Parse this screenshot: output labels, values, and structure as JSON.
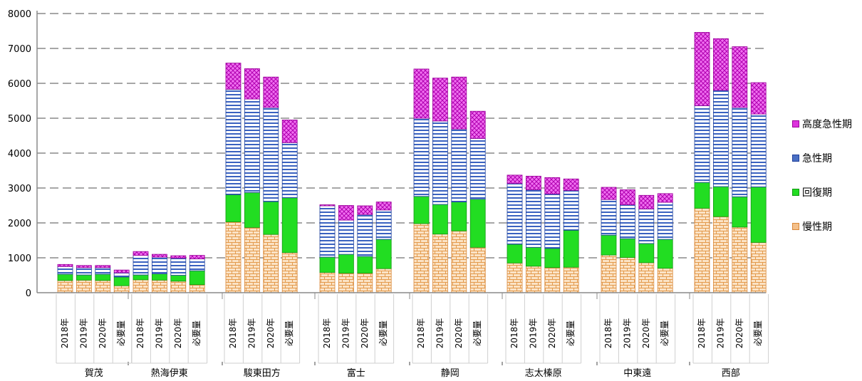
{
  "chart_data": {
    "type": "bar",
    "stacked": true,
    "ylim": [
      0,
      8000
    ],
    "yticks": [
      0,
      1000,
      2000,
      3000,
      4000,
      5000,
      6000,
      7000,
      8000
    ],
    "grid": true,
    "legend_position": "right",
    "groups": [
      {
        "name": "賀茂",
        "categories": [
          "2018年",
          "2019年",
          "2020年",
          "必要量"
        ]
      },
      {
        "name": "熱海伊東",
        "categories": [
          "2018年",
          "2019年",
          "2020年",
          "必要量"
        ]
      },
      {
        "name": "駿東田方",
        "categories": [
          "2018年",
          "2019年",
          "2020年",
          "必要量"
        ]
      },
      {
        "name": "富士",
        "categories": [
          "2018年",
          "2019年",
          "2020年",
          "必要量"
        ]
      },
      {
        "name": "静岡",
        "categories": [
          "2018年",
          "2019年",
          "2020年",
          "必要量"
        ]
      },
      {
        "name": "志太榛原",
        "categories": [
          "2018年",
          "2019年",
          "2020年",
          "必要量"
        ]
      },
      {
        "name": "中東遠",
        "categories": [
          "2018年",
          "2019年",
          "2020年",
          "必要量"
        ]
      },
      {
        "name": "西部",
        "categories": [
          "2018年",
          "2019年",
          "2020年",
          "必要量"
        ]
      }
    ],
    "series": [
      {
        "name": "慢性期",
        "color": "#f4c08a",
        "values": [
          350,
          360,
          350,
          200,
          370,
          360,
          330,
          230,
          2030,
          1870,
          1670,
          1150,
          580,
          560,
          560,
          690,
          1980,
          1680,
          1770,
          1300,
          850,
          760,
          720,
          730,
          1080,
          1010,
          860,
          700,
          2420,
          2180,
          1880,
          1440
        ]
      },
      {
        "name": "回復期",
        "color": "#22dd22",
        "values": [
          180,
          150,
          180,
          250,
          140,
          180,
          170,
          400,
          780,
          1000,
          940,
          1570,
          440,
          540,
          480,
          840,
          780,
          850,
          830,
          1380,
          540,
          540,
          550,
          1060,
          570,
          540,
          550,
          830,
          740,
          860,
          870,
          1590
        ]
      },
      {
        "name": "急性期",
        "color": "#4a6fc4",
        "values": [
          220,
          210,
          190,
          120,
          560,
          480,
          490,
          340,
          3020,
          2680,
          2700,
          1580,
          1470,
          980,
          1200,
          840,
          2240,
          2390,
          2090,
          1740,
          1740,
          1650,
          1560,
          1140,
          1020,
          970,
          990,
          1060,
          2200,
          2760,
          2560,
          2090
        ]
      },
      {
        "name": "高度急性期",
        "color": "#dd33dd",
        "values": [
          60,
          60,
          60,
          80,
          110,
          80,
          70,
          100,
          750,
          870,
          870,
          650,
          30,
          420,
          250,
          230,
          1410,
          1230,
          1490,
          780,
          240,
          390,
          470,
          330,
          350,
          430,
          390,
          250,
          2100,
          1480,
          1740,
          900
        ]
      }
    ]
  },
  "legend_order": [
    "高度急性期",
    "急性期",
    "回復期",
    "慢性期"
  ]
}
